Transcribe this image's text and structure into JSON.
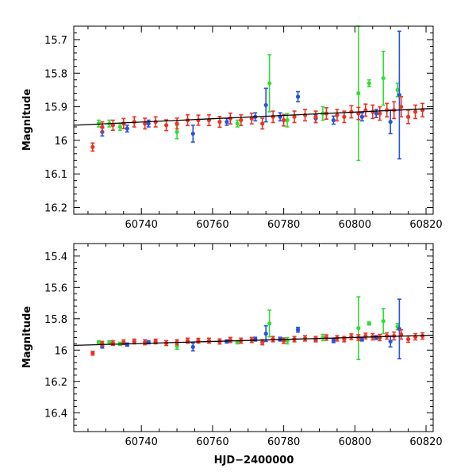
{
  "chart_data": [
    {
      "type": "scatter",
      "title": "",
      "xlabel": "",
      "ylabel": "Magnitude",
      "xlim": [
        60721,
        60822
      ],
      "ylim": [
        16.22,
        15.66
      ],
      "y_inverted": true,
      "grid": false,
      "x_ticks": [
        "60740",
        "60760",
        "60780",
        "60800",
        "60820"
      ],
      "y_ticks": [
        "15.7",
        "15.8",
        "15.9",
        "16",
        "16.1",
        "16.2"
      ],
      "trend_line": {
        "x": [
          60721,
          60822
        ],
        "y": [
          15.955,
          15.905
        ]
      },
      "series": [
        {
          "color": "#ee3322",
          "x": [
            60726.3,
            60729,
            60732,
            60735,
            60738,
            60741,
            60744,
            60747,
            60750,
            60753,
            60756,
            60759,
            60762,
            60765,
            60768,
            60771,
            60774,
            60777,
            60780,
            60783,
            60786,
            60789,
            60792,
            60795,
            60797,
            60799,
            60801,
            60803,
            60805,
            60807,
            60809,
            60811,
            60813,
            60815,
            60817,
            60819
          ],
          "y": [
            16.02,
            15.96,
            15.955,
            15.95,
            15.945,
            15.95,
            15.945,
            15.955,
            15.95,
            15.94,
            15.94,
            15.94,
            15.945,
            15.935,
            15.94,
            15.935,
            15.95,
            15.93,
            15.94,
            15.93,
            15.925,
            15.93,
            15.92,
            15.925,
            15.93,
            15.915,
            15.92,
            15.91,
            15.915,
            15.92,
            15.91,
            15.91,
            15.9,
            15.93,
            15.915,
            15.91
          ],
          "err": [
            0.012,
            0.015,
            0.015,
            0.015,
            0.015,
            0.016,
            0.015,
            0.016,
            0.016,
            0.016,
            0.015,
            0.016,
            0.016,
            0.016,
            0.016,
            0.016,
            0.016,
            0.017,
            0.017,
            0.017,
            0.017,
            0.017,
            0.017,
            0.017,
            0.017,
            0.018,
            0.018,
            0.018,
            0.02,
            0.02,
            0.02,
            0.025,
            0.03,
            0.02,
            0.02,
            0.02
          ]
        },
        {
          "color": "#33dd33",
          "x": [
            60728,
            60731,
            60734,
            60750,
            60767,
            60776,
            60781,
            60791,
            60801,
            60804,
            60808,
            60812
          ],
          "y": [
            15.95,
            15.95,
            15.96,
            15.975,
            15.95,
            15.83,
            15.94,
            15.92,
            15.86,
            15.83,
            15.815,
            15.85
          ],
          "err": [
            0.01,
            0.01,
            0.01,
            0.02,
            0.01,
            0.085,
            0.02,
            0.02,
            0.2,
            0.01,
            0.08,
            0.02
          ]
        },
        {
          "color": "#2255dd",
          "x": [
            60729,
            60736,
            60742,
            60754.5,
            60764,
            60772,
            60775,
            60779,
            60784,
            60789,
            60794,
            60802,
            60806,
            60810,
            60812.5
          ],
          "y": [
            15.975,
            15.965,
            15.95,
            15.98,
            15.945,
            15.93,
            15.895,
            15.93,
            15.87,
            15.935,
            15.94,
            15.93,
            15.92,
            15.945,
            15.865
          ],
          "err": [
            0.012,
            0.01,
            0.01,
            0.025,
            0.01,
            0.012,
            0.05,
            0.012,
            0.015,
            0.012,
            0.012,
            0.012,
            0.012,
            0.035,
            0.19
          ]
        }
      ]
    },
    {
      "type": "scatter",
      "title": "",
      "xlabel": "HJD−2400000",
      "ylabel": "Magnitude",
      "xlim": [
        60721,
        60822
      ],
      "ylim": [
        16.52,
        15.32
      ],
      "y_inverted": true,
      "grid": false,
      "x_ticks": [
        "60740",
        "60760",
        "60780",
        "60800",
        "60820"
      ],
      "y_ticks": [
        "15.4",
        "15.6",
        "15.8",
        "16",
        "16.2",
        "16.4"
      ],
      "trend_line": {
        "x": [
          60721,
          60822
        ],
        "y": [
          15.97,
          15.905
        ]
      },
      "series": [
        {
          "color": "#ee3322",
          "x": [
            60726.3,
            60729,
            60732,
            60735,
            60738,
            60741,
            60744,
            60747,
            60750,
            60753,
            60756,
            60759,
            60762,
            60765,
            60768,
            60771,
            60774,
            60777,
            60780,
            60783,
            60786,
            60789,
            60792,
            60795,
            60797,
            60799,
            60801,
            60803,
            60805,
            60807,
            60809,
            60811,
            60813,
            60815,
            60817,
            60819
          ],
          "y": [
            16.02,
            15.96,
            15.955,
            15.95,
            15.945,
            15.95,
            15.945,
            15.955,
            15.95,
            15.94,
            15.94,
            15.94,
            15.945,
            15.935,
            15.94,
            15.935,
            15.95,
            15.93,
            15.94,
            15.93,
            15.925,
            15.93,
            15.92,
            15.925,
            15.93,
            15.915,
            15.92,
            15.91,
            15.915,
            15.92,
            15.91,
            15.91,
            15.9,
            15.93,
            15.915,
            15.91
          ],
          "err": [
            0.012,
            0.015,
            0.015,
            0.015,
            0.015,
            0.016,
            0.015,
            0.016,
            0.016,
            0.016,
            0.015,
            0.016,
            0.016,
            0.016,
            0.016,
            0.016,
            0.016,
            0.017,
            0.017,
            0.017,
            0.017,
            0.017,
            0.017,
            0.017,
            0.017,
            0.018,
            0.018,
            0.018,
            0.02,
            0.02,
            0.02,
            0.025,
            0.03,
            0.02,
            0.02,
            0.02
          ]
        },
        {
          "color": "#33dd33",
          "x": [
            60728,
            60731,
            60734,
            60750,
            60767,
            60776,
            60781,
            60791,
            60801,
            60804,
            60808,
            60812
          ],
          "y": [
            15.95,
            15.95,
            15.96,
            15.975,
            15.95,
            15.83,
            15.94,
            15.92,
            15.86,
            15.83,
            15.815,
            15.85
          ],
          "err": [
            0.01,
            0.01,
            0.01,
            0.02,
            0.01,
            0.085,
            0.02,
            0.02,
            0.2,
            0.01,
            0.08,
            0.02
          ]
        },
        {
          "color": "#2255dd",
          "x": [
            60729,
            60736,
            60742,
            60754.5,
            60764,
            60772,
            60775,
            60779,
            60784,
            60789,
            60794,
            60802,
            60806,
            60810,
            60812.5
          ],
          "y": [
            15.975,
            15.965,
            15.95,
            15.98,
            15.945,
            15.93,
            15.895,
            15.93,
            15.87,
            15.935,
            15.94,
            15.93,
            15.92,
            15.945,
            15.865
          ],
          "err": [
            0.012,
            0.01,
            0.01,
            0.025,
            0.01,
            0.012,
            0.05,
            0.012,
            0.015,
            0.012,
            0.012,
            0.012,
            0.012,
            0.035,
            0.19
          ]
        }
      ]
    }
  ]
}
